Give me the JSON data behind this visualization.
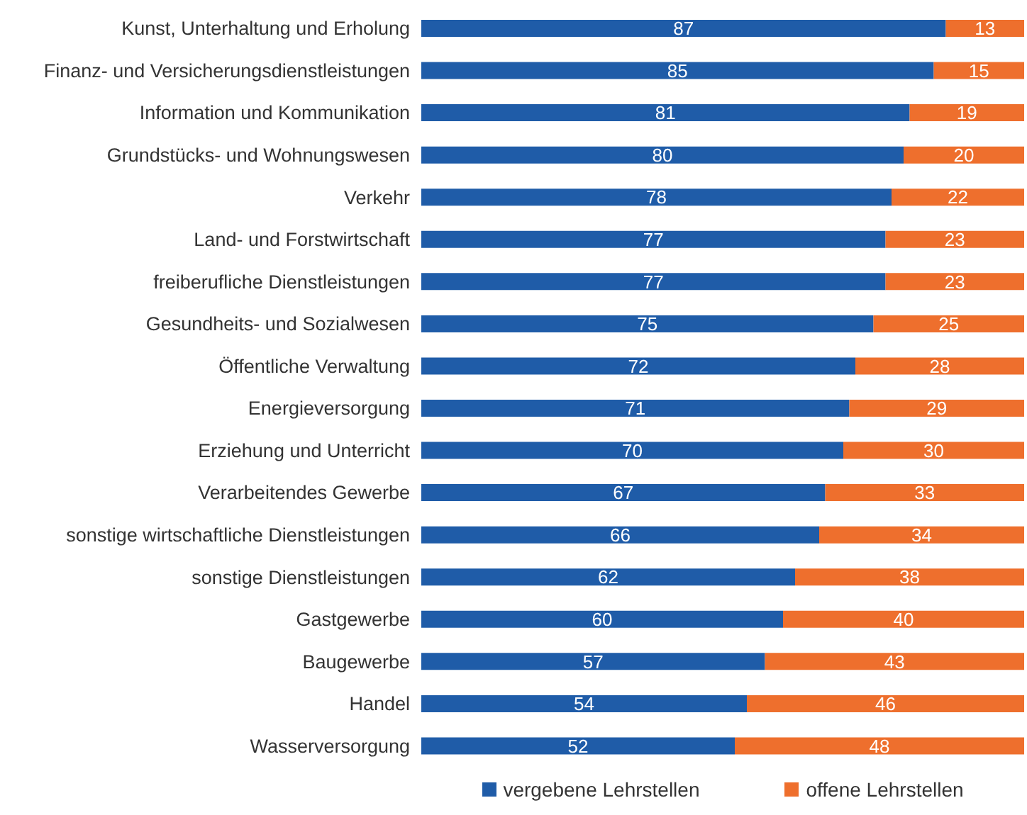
{
  "chart_data": {
    "type": "bar",
    "orientation": "horizontal",
    "stacked": true,
    "data_labels": true,
    "legend": "bottom",
    "grid": false,
    "categories": [
      "Kunst, Unterhaltung und Erholung",
      "Finanz- und Versicherungsdienstleistungen",
      "Information und Kommunikation",
      "Grundstücks- und Wohnungswesen",
      "Verkehr",
      "Land- und Forstwirtschaft",
      "freiberufliche Dienstleistungen",
      "Gesundheits- und Sozialwesen",
      "Öffentliche Verwaltung",
      "Energieversorgung",
      "Erziehung und Unterricht",
      "Verarbeitendes Gewerbe",
      "sonstige wirtschaftliche Dienstleistungen",
      "sonstige Dienstleistungen",
      "Gastgewerbe",
      "Baugewerbe",
      "Handel",
      "Wasserversorgung"
    ],
    "series": [
      {
        "name": "vergebene Lehrstellen",
        "color": "#1f5ca8",
        "values": [
          87,
          85,
          81,
          80,
          78,
          77,
          77,
          75,
          72,
          71,
          70,
          67,
          66,
          62,
          60,
          57,
          54,
          52
        ]
      },
      {
        "name": "offene Lehrstellen",
        "color": "#ee6f2d",
        "values": [
          13,
          15,
          19,
          20,
          22,
          23,
          23,
          25,
          28,
          29,
          30,
          33,
          34,
          38,
          40,
          43,
          46,
          48
        ]
      }
    ]
  }
}
